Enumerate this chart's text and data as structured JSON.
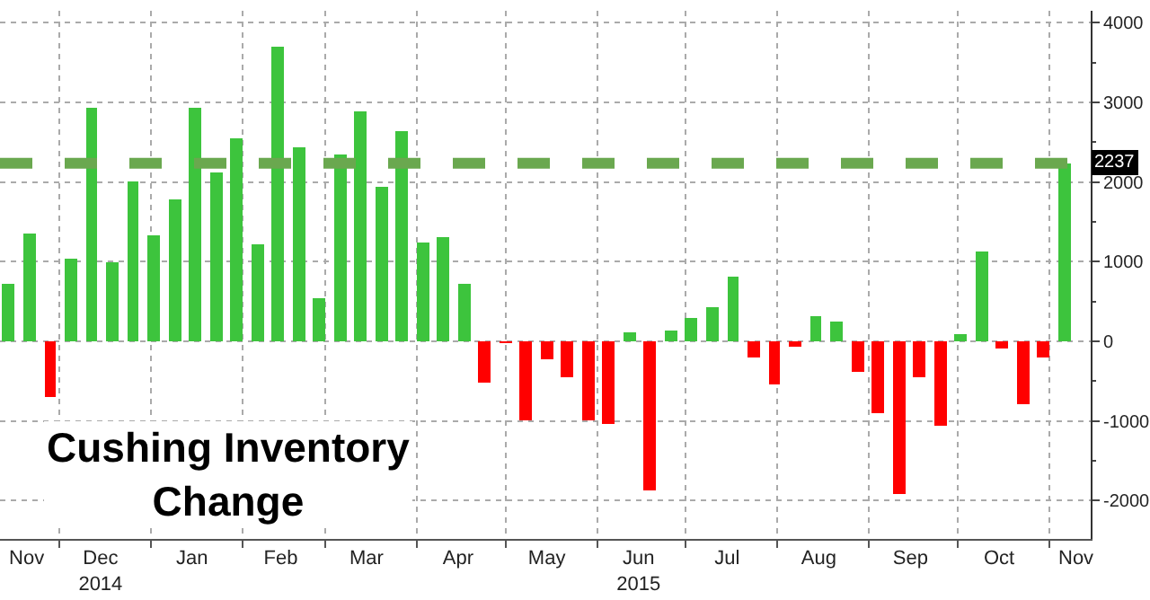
{
  "chart_data": {
    "type": "bar",
    "title": "Cushing Inventory\nChange",
    "x": [
      "2014-11-14",
      "2014-11-21",
      "2014-11-28",
      "2014-12-05",
      "2014-12-12",
      "2014-12-19",
      "2014-12-26",
      "2015-01-02",
      "2015-01-09",
      "2015-01-16",
      "2015-01-23",
      "2015-01-30",
      "2015-02-06",
      "2015-02-13",
      "2015-02-20",
      "2015-02-27",
      "2015-03-06",
      "2015-03-13",
      "2015-03-20",
      "2015-03-27",
      "2015-04-03",
      "2015-04-10",
      "2015-04-17",
      "2015-04-24",
      "2015-05-01",
      "2015-05-08",
      "2015-05-15",
      "2015-05-22",
      "2015-05-29",
      "2015-06-05",
      "2015-06-12",
      "2015-06-19",
      "2015-06-26",
      "2015-07-03",
      "2015-07-10",
      "2015-07-17",
      "2015-07-24",
      "2015-07-31",
      "2015-08-07",
      "2015-08-14",
      "2015-08-21",
      "2015-08-28",
      "2015-09-04",
      "2015-09-11",
      "2015-09-18",
      "2015-09-25",
      "2015-10-02",
      "2015-10-09",
      "2015-10-16",
      "2015-10-23",
      "2015-10-30",
      "2015-11-06"
    ],
    "values": [
      720,
      1350,
      -700,
      1030,
      2940,
      990,
      2010,
      1320,
      1780,
      2930,
      2110,
      2540,
      1220,
      3690,
      2440,
      540,
      2340,
      2880,
      1930,
      2640,
      1250,
      1300,
      730,
      -520,
      -10,
      -1000,
      -230,
      -440,
      -990,
      -1030,
      110,
      -1880,
      130,
      290,
      440,
      820,
      -210,
      -550,
      -60,
      320,
      250,
      -390,
      -900,
      -1920,
      -460,
      -1070,
      90,
      1130,
      -80,
      -790,
      -200,
      2237
    ],
    "colors": [
      "#3dc43d",
      "#3dc43d",
      "#ff0000",
      "#3dc43d",
      "#3dc43d",
      "#3dc43d",
      "#3dc43d",
      "#3dc43d",
      "#3dc43d",
      "#3dc43d",
      "#3dc43d",
      "#3dc43d",
      "#3dc43d",
      "#3dc43d",
      "#3dc43d",
      "#3dc43d",
      "#3dc43d",
      "#3dc43d",
      "#3dc43d",
      "#3dc43d",
      "#3dc43d",
      "#3dc43d",
      "#3dc43d",
      "#ff0000",
      "#ff0000",
      "#ff0000",
      "#ff0000",
      "#ff0000",
      "#ff0000",
      "#ff0000",
      "#3dc43d",
      "#ff0000",
      "#3dc43d",
      "#3dc43d",
      "#3dc43d",
      "#3dc43d",
      "#ff0000",
      "#ff0000",
      "#ff0000",
      "#3dc43d",
      "#3dc43d",
      "#ff0000",
      "#ff0000",
      "#ff0000",
      "#ff0000",
      "#ff0000",
      "#3dc43d",
      "#3dc43d",
      "#ff0000",
      "#ff0000",
      "#ff0000",
      "#3dc43d"
    ],
    "xlim": [
      "2014-11-11",
      "2015-11-15"
    ],
    "xticks": [
      {
        "value": "2014-11-20",
        "label": "Nov"
      },
      {
        "value": "2014-12-15",
        "label": "Dec\n2014"
      },
      {
        "value": "2015-01-15",
        "label": "Jan"
      },
      {
        "value": "2015-02-14",
        "label": "Feb"
      },
      {
        "value": "2015-03-15",
        "label": "Mar"
      },
      {
        "value": "2015-04-15",
        "label": "Apr"
      },
      {
        "value": "2015-05-15",
        "label": "May"
      },
      {
        "value": "2015-06-15",
        "label": "Jun\n2015"
      },
      {
        "value": "2015-07-15",
        "label": "Jul"
      },
      {
        "value": "2015-08-15",
        "label": "Aug"
      },
      {
        "value": "2015-09-15",
        "label": "Sep"
      },
      {
        "value": "2015-10-15",
        "label": "Oct"
      },
      {
        "value": "2015-11-10",
        "label": "Nov"
      }
    ],
    "ylim": [
      -2480,
      4150
    ],
    "yticks": [
      -2000,
      -1000,
      0,
      1000,
      2000,
      3000,
      4000
    ],
    "annotations": [
      {
        "text": "2237",
        "x": "2015-11-06",
        "y": 2237
      }
    ],
    "ref_lines": [
      {
        "axis": "y",
        "value": 2237,
        "color": "#6aa84f",
        "line_style": "dashed"
      }
    ],
    "grid": true
  }
}
